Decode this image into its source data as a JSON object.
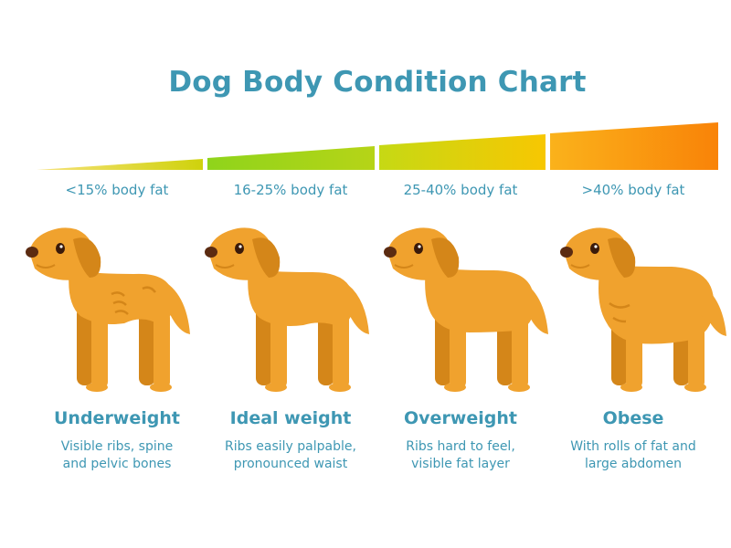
{
  "title": "Dog Body Condition Chart",
  "colors": {
    "heading": "#3e97b3",
    "dog_body": "#f0a22e",
    "dog_shade": "#d48619",
    "gradient": [
      "#f5cc00",
      "#8ed11c",
      "#f6d000",
      "#f98608"
    ]
  },
  "conditions": [
    {
      "fat": "<15% body fat",
      "name": "Underweight",
      "desc": [
        "Visible ribs, spine",
        "and pelvic bones"
      ],
      "icon": "underweight-dog-icon"
    },
    {
      "fat": "16-25% body fat",
      "name": "Ideal weight",
      "desc": [
        "Ribs easily palpable,",
        "pronounced waist"
      ],
      "icon": "ideal-weight-dog-icon"
    },
    {
      "fat": "25-40% body fat",
      "name": "Overweight",
      "desc": [
        "Ribs hard to feel,",
        "visible fat layer"
      ],
      "icon": "overweight-dog-icon"
    },
    {
      "fat": ">40% body fat",
      "name": "Obese",
      "desc": [
        "With rolls of fat and",
        "large abdomen"
      ],
      "icon": "obese-dog-icon"
    }
  ]
}
